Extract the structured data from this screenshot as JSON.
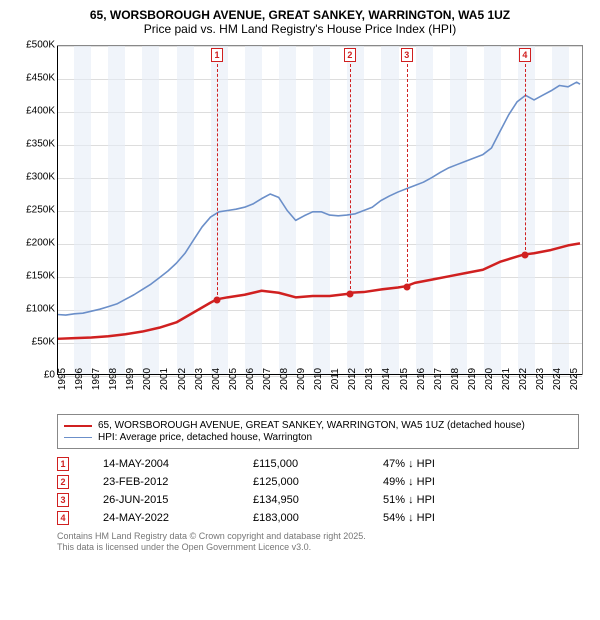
{
  "title": {
    "line1": "65, WORSBOROUGH AVENUE, GREAT SANKEY, WARRINGTON, WA5 1UZ",
    "line2": "Price paid vs. HM Land Registry's House Price Index (HPI)"
  },
  "chart": {
    "type": "line",
    "background_color": "#ffffff",
    "grid_color": "#dddddd",
    "axis_color": "#000000",
    "plot_border_color": "#888888",
    "x": {
      "min": 1995,
      "max": 2025.8,
      "ticks": [
        1995,
        1996,
        1997,
        1998,
        1999,
        2000,
        2001,
        2002,
        2003,
        2004,
        2005,
        2006,
        2007,
        2008,
        2009,
        2010,
        2011,
        2012,
        2013,
        2014,
        2015,
        2016,
        2017,
        2018,
        2019,
        2020,
        2021,
        2022,
        2023,
        2024,
        2025
      ],
      "tick_fontsize": 10,
      "tick_rotation_deg": -90
    },
    "y": {
      "min": 0,
      "max": 500000,
      "ticks": [
        0,
        50000,
        100000,
        150000,
        200000,
        250000,
        300000,
        350000,
        400000,
        450000,
        500000
      ],
      "tick_labels": [
        "£0",
        "£50K",
        "£100K",
        "£150K",
        "£200K",
        "£250K",
        "£300K",
        "£350K",
        "£400K",
        "£450K",
        "£500K"
      ],
      "tick_fontsize": 10
    },
    "alt_bands": {
      "color": "#e6edf7",
      "opacity": 0.6,
      "years": [
        1996,
        1998,
        2000,
        2002,
        2004,
        2006,
        2008,
        2010,
        2012,
        2014,
        2016,
        2018,
        2020,
        2022,
        2024
      ]
    },
    "series": {
      "price_paid": {
        "label": "65, WORSBOROUGH AVENUE, GREAT SANKEY, WARRINGTON, WA5 1UZ (detached house)",
        "color": "#d02020",
        "line_width": 2.5,
        "points": [
          [
            1995,
            55000
          ],
          [
            1996,
            56000
          ],
          [
            1997,
            57000
          ],
          [
            1998,
            59000
          ],
          [
            1999,
            62000
          ],
          [
            2000,
            66000
          ],
          [
            2001,
            72000
          ],
          [
            2002,
            80000
          ],
          [
            2003,
            95000
          ],
          [
            2004,
            110000
          ],
          [
            2004.37,
            115000
          ],
          [
            2005,
            118000
          ],
          [
            2006,
            122000
          ],
          [
            2007,
            128000
          ],
          [
            2008,
            125000
          ],
          [
            2009,
            118000
          ],
          [
            2010,
            120000
          ],
          [
            2011,
            120000
          ],
          [
            2012,
            123000
          ],
          [
            2012.15,
            125000
          ],
          [
            2013,
            126000
          ],
          [
            2014,
            130000
          ],
          [
            2015,
            133000
          ],
          [
            2015.48,
            134950
          ],
          [
            2016,
            140000
          ],
          [
            2017,
            145000
          ],
          [
            2018,
            150000
          ],
          [
            2019,
            155000
          ],
          [
            2020,
            160000
          ],
          [
            2021,
            172000
          ],
          [
            2022,
            180000
          ],
          [
            2022.4,
            183000
          ],
          [
            2023,
            185000
          ],
          [
            2024,
            190000
          ],
          [
            2025,
            197000
          ],
          [
            2025.7,
            200000
          ]
        ]
      },
      "hpi": {
        "label": "HPI: Average price, detached house, Warrington",
        "color": "#6b8fc9",
        "line_width": 1.6,
        "points": [
          [
            1995,
            92000
          ],
          [
            1995.5,
            91000
          ],
          [
            1996,
            93000
          ],
          [
            1996.5,
            94000
          ],
          [
            1997,
            97000
          ],
          [
            1997.5,
            100000
          ],
          [
            1998,
            104000
          ],
          [
            1998.5,
            108000
          ],
          [
            1999,
            115000
          ],
          [
            1999.5,
            122000
          ],
          [
            2000,
            130000
          ],
          [
            2000.5,
            138000
          ],
          [
            2001,
            148000
          ],
          [
            2001.5,
            158000
          ],
          [
            2002,
            170000
          ],
          [
            2002.5,
            185000
          ],
          [
            2003,
            205000
          ],
          [
            2003.5,
            225000
          ],
          [
            2004,
            240000
          ],
          [
            2004.5,
            248000
          ],
          [
            2005,
            250000
          ],
          [
            2005.5,
            252000
          ],
          [
            2006,
            255000
          ],
          [
            2006.5,
            260000
          ],
          [
            2007,
            268000
          ],
          [
            2007.5,
            275000
          ],
          [
            2008,
            270000
          ],
          [
            2008.5,
            250000
          ],
          [
            2009,
            235000
          ],
          [
            2009.5,
            242000
          ],
          [
            2010,
            248000
          ],
          [
            2010.5,
            248000
          ],
          [
            2011,
            243000
          ],
          [
            2011.5,
            242000
          ],
          [
            2012,
            243000
          ],
          [
            2012.5,
            245000
          ],
          [
            2013,
            250000
          ],
          [
            2013.5,
            255000
          ],
          [
            2014,
            265000
          ],
          [
            2014.5,
            272000
          ],
          [
            2015,
            278000
          ],
          [
            2015.5,
            283000
          ],
          [
            2016,
            288000
          ],
          [
            2016.5,
            293000
          ],
          [
            2017,
            300000
          ],
          [
            2017.5,
            308000
          ],
          [
            2018,
            315000
          ],
          [
            2018.5,
            320000
          ],
          [
            2019,
            325000
          ],
          [
            2019.5,
            330000
          ],
          [
            2020,
            335000
          ],
          [
            2020.5,
            345000
          ],
          [
            2021,
            370000
          ],
          [
            2021.5,
            395000
          ],
          [
            2022,
            415000
          ],
          [
            2022.5,
            425000
          ],
          [
            2023,
            418000
          ],
          [
            2023.5,
            425000
          ],
          [
            2024,
            432000
          ],
          [
            2024.5,
            440000
          ],
          [
            2025,
            438000
          ],
          [
            2025.5,
            445000
          ],
          [
            2025.7,
            442000
          ]
        ]
      }
    },
    "sale_markers": [
      {
        "n": "1",
        "year": 2004.37,
        "date": "14-MAY-2004",
        "price": "£115,000",
        "vs_hpi": "47% ↓ HPI",
        "marker_y": 115000
      },
      {
        "n": "2",
        "year": 2012.15,
        "date": "23-FEB-2012",
        "price": "£125,000",
        "vs_hpi": "49% ↓ HPI",
        "marker_y": 125000
      },
      {
        "n": "3",
        "year": 2015.48,
        "date": "26-JUN-2015",
        "price": "£134,950",
        "vs_hpi": "51% ↓ HPI",
        "marker_y": 134950
      },
      {
        "n": "4",
        "year": 2022.4,
        "date": "24-MAY-2022",
        "price": "£183,000",
        "vs_hpi": "54% ↓ HPI",
        "marker_y": 183000
      }
    ],
    "marker_box": {
      "border_color": "#d02020",
      "text_color": "#d02020",
      "bg": "#ffffff",
      "fontsize": 9
    }
  },
  "legend": {
    "border_color": "#888888",
    "fontsize": 10
  },
  "footer": {
    "line1": "Contains HM Land Registry data © Crown copyright and database right 2025.",
    "line2": "This data is licensed under the Open Government Licence v3.0.",
    "color": "#777777",
    "fontsize": 9
  }
}
